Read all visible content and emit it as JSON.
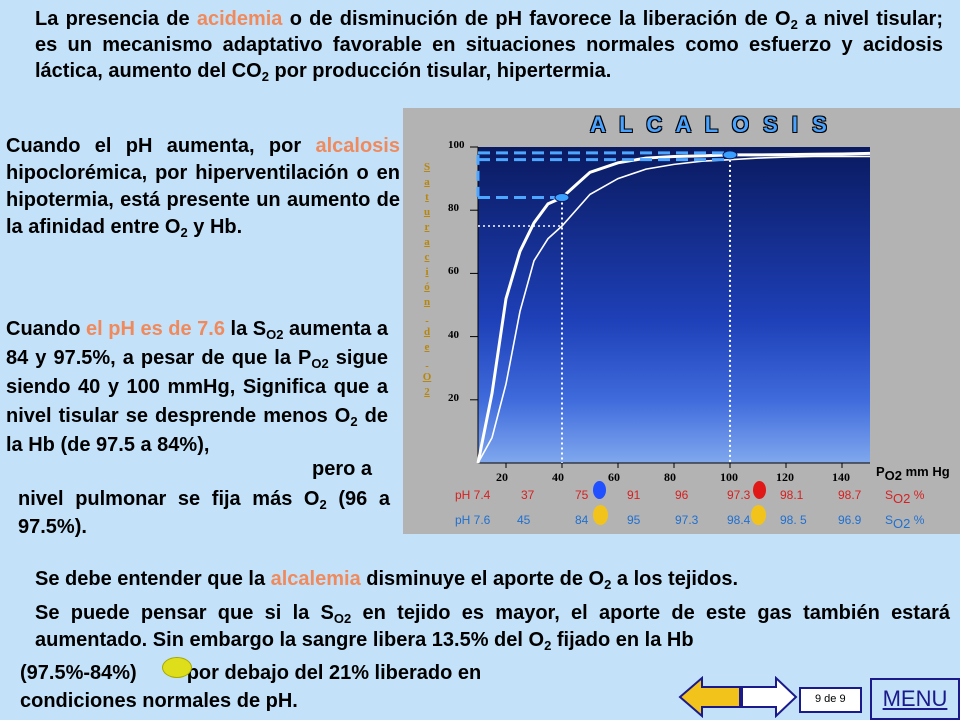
{
  "top_text": {
    "p1": "La presencia de ",
    "hl": "acidemia",
    "p2": " o de disminución de pH favorece la liberación de O",
    "sub": "2",
    "p3": " a nivel tisular; es un mecanismo adaptativo favorable en situaciones normales como esfuerzo y  acidosis láctica, aumento del CO",
    "sub2": "2",
    "p4": " por producción tisular, hipertermia."
  },
  "left1": {
    "p1": "Cuando el pH aumenta, por ",
    "hl": "alcalosis",
    "p2": " hipoclorémica, por hiperventilación o en hipotermia, está presente un aumento de la afinidad entre O",
    "sub": "2",
    "p3": " y Hb."
  },
  "left2": {
    "p1": "Cuando ",
    "hl": "el pH  es de 7.6",
    "p2": " la S",
    "sub": "O2",
    "p3": " aumenta a 84 y 97.5%, a pesar de que la P",
    "sub2": "O2",
    "p4": " sigue siendo 40 y 100 mmHg, Significa que a nivel tisular se desprende menos O",
    "sub3": "2",
    "p5": " de la Hb (de 97.5 a 84%),"
  },
  "pero": "pero a",
  "left3": {
    "p1": "nivel pulmonar se fija más O",
    "sub": "2",
    "p2": " (96 a 97.5%)."
  },
  "bottom1": {
    "p1": "Se debe entender que la ",
    "hl": "alcalemia",
    "p2": " disminuye el aporte de O",
    "sub": "2",
    "p3": " a los tejidos."
  },
  "bottom2": {
    "p1": "Se puede pensar que si la S",
    "sub": "O2",
    "p2": " en tejido es mayor, el aporte de este gas también estará aumentado. Sin embargo la sangre libera 13.5% del O",
    "sub2": "2",
    "p3": " fijado en  la Hb"
  },
  "bottom3": {
    "p1": "(97.5%-84%)",
    "p2": "por debajo del 21% liberado en"
  },
  "bottom4": "condiciones normales de pH.",
  "chart_title": "A L C A L O S I S",
  "y_axis_label_letters": [
    "S",
    "a",
    "t",
    "u",
    "r",
    "a",
    "c",
    "i",
    "ó",
    "n",
    "",
    "d",
    "e",
    "",
    "O",
    "2"
  ],
  "x_unit": {
    "main": "P",
    "sub": "O2",
    "rest": " mm Hg"
  },
  "table": {
    "row1": {
      "label": "pH 7.4",
      "values": [
        "37",
        "75",
        "91",
        "96",
        "97.3",
        "98.1",
        "98.7"
      ],
      "unit_main": "S",
      "unit_sub": "O2",
      "unit_rest": " %"
    },
    "row2": {
      "label": "pH 7.6",
      "values": [
        "45",
        "84",
        "95",
        "97.3",
        "98.4",
        "98. 5",
        "96.9"
      ],
      "unit_main": "S",
      "unit_sub": "O2",
      "unit_rest": "  %"
    }
  },
  "chart_data": {
    "type": "line",
    "title": "A L C A L O S I S",
    "xlabel": "PO2 mm Hg",
    "ylabel": "Saturación de O2",
    "xlim": [
      10,
      150
    ],
    "ylim": [
      0,
      100
    ],
    "x_ticks": [
      20,
      40,
      60,
      80,
      100,
      120,
      140
    ],
    "y_ticks": [
      20,
      40,
      60,
      80,
      100
    ],
    "series": [
      {
        "name": "pH 7.4",
        "x": [
          10,
          15,
          20,
          25,
          30,
          35,
          40,
          50,
          60,
          70,
          80,
          90,
          100,
          110,
          120,
          130,
          140,
          150
        ],
        "y": [
          0,
          8,
          25,
          48,
          64,
          71,
          75,
          85,
          90,
          93,
          94.5,
          95.5,
          96,
          96.5,
          96.8,
          97,
          97,
          97
        ]
      },
      {
        "name": "pH 7.6",
        "x": [
          10,
          15,
          20,
          25,
          30,
          35,
          40,
          45,
          50,
          60,
          70,
          80,
          90,
          100,
          110,
          120,
          130,
          140,
          150
        ],
        "y": [
          0,
          22,
          52,
          67,
          76,
          82,
          84,
          88,
          92,
          95,
          96.5,
          97,
          97.2,
          97.5,
          97.5,
          97.6,
          97.7,
          97.8,
          98
        ]
      }
    ],
    "markers": [
      {
        "x": 40,
        "y": 84
      },
      {
        "x": 100,
        "y": 97.5
      }
    ],
    "colors": {
      "curve": "#ffffff",
      "dash": "#4da6ff",
      "marker": "#3aa0ff"
    }
  },
  "pager": "9 de  9",
  "menu_label": "MENU",
  "colors": {
    "highlight": "#f08a5d",
    "background": "#c3e2f9",
    "row1": "#d62020",
    "row2": "#2070d0",
    "red_dot": "#e01818",
    "blue_dot": "#2050ff",
    "yellow_dot": "#f2c41b"
  }
}
